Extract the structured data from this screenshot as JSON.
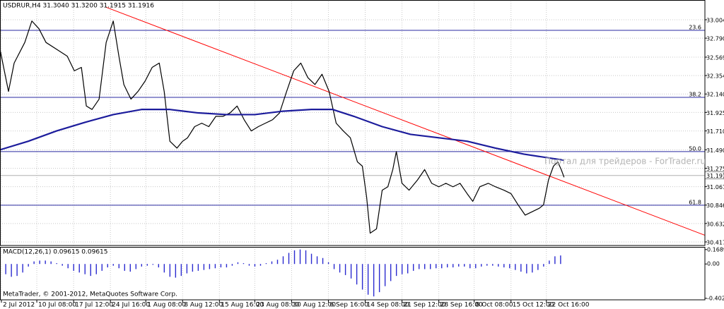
{
  "chart_data": {
    "type": "line",
    "title": "USDRUR,H4  31.3040 31.3200 31.1915 31.1916",
    "watermark": "Портал для трейдеров - ForTrader.ru",
    "footer": "MetaTrader, © 2001-2012, MetaQuotes Software Corp.",
    "grid": true,
    "xlim": [
      0,
      249
    ],
    "ylim": [
      30.376,
      33.218
    ],
    "xticks": [
      {
        "value": 0.5,
        "label": "2 Jul 2012"
      },
      {
        "value": 13,
        "label": "10 Jul 08:00"
      },
      {
        "value": 26,
        "label": "17 Jul 12:00"
      },
      {
        "value": 39,
        "label": "24 Jul 16:00"
      },
      {
        "value": 51.5,
        "label": "1 Aug 08:00"
      },
      {
        "value": 64.5,
        "label": "8 Aug 12:00"
      },
      {
        "value": 77.5,
        "label": "15 Aug 16:00"
      },
      {
        "value": 90,
        "label": "23 Aug 08:00"
      },
      {
        "value": 103,
        "label": "30 Aug 12:00"
      },
      {
        "value": 116,
        "label": "6 Sep 16:00"
      },
      {
        "value": 129,
        "label": "14 Sep 08:00"
      },
      {
        "value": 142,
        "label": "21 Sep 12:00"
      },
      {
        "value": 155,
        "label": "28 Sep 16:00"
      },
      {
        "value": 167.5,
        "label": "8 Oct 08:00"
      },
      {
        "value": 180.5,
        "label": "15 Oct 12:00"
      },
      {
        "value": 193,
        "label": "22 Oct 16:00"
      }
    ],
    "yticks": [
      33.0045,
      {
        "value": 32.79,
        "label": "32.7900"
      },
      {
        "value": 32.569,
        "label": "32.5690"
      },
      32.3545,
      {
        "value": 32.14,
        "label": "32.1400"
      },
      31.9255,
      {
        "value": 31.71,
        "label": "31.7100"
      },
      {
        "value": 31.49,
        "label": "31.4900"
      },
      31.2755,
      {
        "value": 31.061,
        "label": "31.0610"
      },
      30.8465,
      {
        "value": 30.632,
        "label": "30.6320"
      },
      30.4175
    ],
    "series": [
      {
        "color": "#000000",
        "x": [
          0,
          3,
          5,
          8.75,
          11.25,
          13.75,
          16.25,
          20,
          23.75,
          26.25,
          28.75,
          30.5,
          32.5,
          35,
          37.5,
          40,
          42,
          43.75,
          46.25,
          48.75,
          51.25,
          53.75,
          56.25,
          58,
          60,
          62.5,
          64.5,
          66.25,
          68.75,
          71.25,
          73.75,
          76.25,
          78.75,
          81.25,
          83.75,
          86.25,
          88.75,
          91.25,
          93.75,
          96.25,
          98.75,
          101.25,
          103.75,
          106.25,
          108.75,
          111.25,
          113.75,
          116.25,
          118.75,
          121.25,
          123.75,
          126.25,
          128,
          129.5,
          130.75,
          133,
          135,
          137,
          138.75,
          140,
          142,
          144.5,
          147.5,
          150,
          152.5,
          155,
          157.5,
          160,
          162.5,
          165,
          167,
          169.5,
          172.5,
          175,
          178,
          180.5,
          183,
          185.5,
          188,
          190.5,
          192,
          193.75,
          195.5,
          197,
          198.25,
          199.25
        ],
        "values": [
          32.66,
          32.17,
          32.5,
          32.74,
          32.99,
          32.9,
          32.74,
          32.66,
          32.58,
          32.41,
          32.45,
          32.0,
          31.96,
          32.08,
          32.74,
          32.99,
          32.58,
          32.25,
          32.08,
          32.17,
          32.29,
          32.45,
          32.5,
          32.17,
          31.59,
          31.51,
          31.59,
          31.63,
          31.76,
          31.8,
          31.76,
          31.88,
          31.88,
          31.92,
          32.0,
          31.84,
          31.71,
          31.76,
          31.8,
          31.84,
          31.92,
          32.17,
          32.41,
          32.5,
          32.33,
          32.25,
          32.37,
          32.17,
          31.8,
          31.71,
          31.63,
          31.35,
          31.3,
          30.94,
          30.52,
          30.57,
          31.02,
          31.06,
          31.26,
          31.47,
          31.1,
          31.02,
          31.14,
          31.26,
          31.1,
          31.06,
          31.1,
          31.06,
          31.1,
          30.98,
          30.89,
          31.06,
          31.1,
          31.06,
          31.02,
          30.98,
          30.85,
          30.73,
          30.77,
          30.81,
          30.85,
          31.14,
          31.3,
          31.35,
          31.26,
          31.17
        ]
      },
      {
        "color": "#1c1c9c",
        "x": [
          0,
          10,
          20,
          30,
          40,
          50,
          60,
          70,
          80,
          90,
          100,
          110,
          117.5,
          125,
          135,
          145,
          155,
          165,
          175,
          185,
          195,
          199.25
        ],
        "values": [
          31.49,
          31.59,
          31.71,
          31.81,
          31.9,
          31.96,
          31.96,
          31.92,
          31.9,
          31.9,
          31.94,
          31.96,
          31.96,
          31.88,
          31.76,
          31.67,
          31.63,
          31.59,
          31.51,
          31.44,
          31.39,
          31.37
        ]
      }
    ],
    "trendline": {
      "color": "#ff0000",
      "x": [
        37.5,
        255
      ],
      "values": [
        33.15,
        30.42
      ]
    },
    "levels": [
      {
        "label": "23.6",
        "value": 32.881
      },
      {
        "label": "38.2",
        "value": 32.101
      },
      {
        "label": "50.0",
        "value": 31.469
      },
      {
        "label": "61.8",
        "value": 30.845
      }
    ],
    "level_color": "#2a2aa0",
    "last_price": 31.1916,
    "macd": {
      "title": "MACD(12,26,1) 0.09615 0.09615",
      "color": "#2b2bd0",
      "ylim": [
        -0.42,
        0.2
      ],
      "yticks": [
        0.16891,
        {
          "value": 0,
          "label": "0.00"
        },
        -0.40234
      ],
      "x": [
        0,
        2,
        4,
        6,
        8,
        10,
        12,
        14,
        16,
        18,
        20,
        22,
        24,
        26,
        28,
        30,
        32,
        34,
        36,
        38,
        40,
        42,
        44,
        46,
        48,
        50,
        52,
        54,
        56,
        58,
        60,
        62,
        64,
        66,
        68,
        70,
        72,
        74,
        76,
        78,
        80,
        82,
        84,
        86,
        88,
        90,
        92,
        94,
        96,
        98,
        100,
        102,
        104,
        106,
        108,
        110,
        112,
        114,
        116,
        118,
        120,
        122,
        124,
        126,
        128,
        130,
        132,
        134,
        136,
        138,
        140,
        142,
        144,
        146,
        148,
        150,
        152,
        154,
        156,
        158,
        160,
        162,
        164,
        166,
        168,
        170,
        172,
        174,
        176,
        178,
        180,
        182,
        184,
        186,
        188,
        190,
        192,
        194,
        196,
        198
      ],
      "values": [
        -0.08,
        -0.12,
        -0.15,
        -0.14,
        -0.1,
        -0.03,
        0.03,
        0.04,
        0.04,
        0.03,
        0.01,
        -0.02,
        -0.05,
        -0.08,
        -0.1,
        -0.12,
        -0.14,
        -0.12,
        -0.08,
        -0.04,
        -0.02,
        -0.05,
        -0.08,
        -0.09,
        -0.06,
        -0.03,
        -0.02,
        -0.01,
        -0.04,
        -0.1,
        -0.15,
        -0.16,
        -0.14,
        -0.11,
        -0.09,
        -0.08,
        -0.07,
        -0.06,
        -0.05,
        -0.04,
        -0.04,
        -0.02,
        0.02,
        0.01,
        -0.02,
        -0.03,
        -0.02,
        0.01,
        0.03,
        0.05,
        0.09,
        0.13,
        0.16,
        0.17,
        0.16,
        0.12,
        0.09,
        0.07,
        0.02,
        -0.06,
        -0.1,
        -0.13,
        -0.17,
        -0.24,
        -0.3,
        -0.36,
        -0.38,
        -0.33,
        -0.26,
        -0.2,
        -0.14,
        -0.12,
        -0.11,
        -0.08,
        -0.06,
        -0.06,
        -0.06,
        -0.05,
        -0.05,
        -0.04,
        -0.04,
        -0.03,
        -0.03,
        -0.05,
        -0.05,
        -0.03,
        -0.02,
        -0.02,
        -0.03,
        -0.04,
        -0.05,
        -0.07,
        -0.09,
        -0.11,
        -0.1,
        -0.07,
        -0.03,
        0.04,
        0.09,
        0.1
      ]
    }
  }
}
